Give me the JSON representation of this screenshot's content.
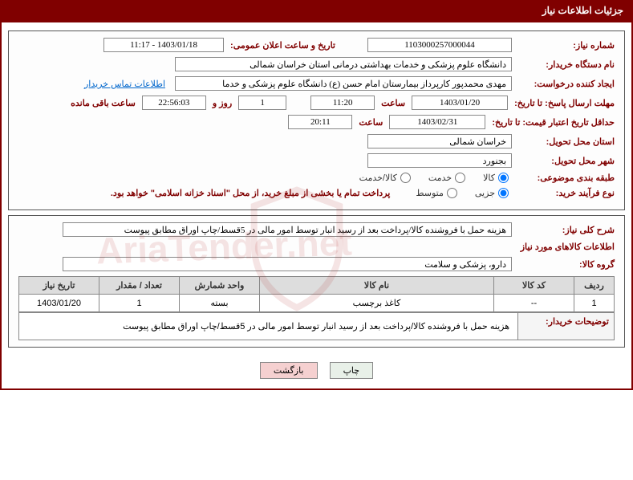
{
  "header_title": "جزئیات اطلاعات نیاز",
  "need_number_label": "شماره نیاز:",
  "need_number": "1103000257000044",
  "announce_label": "تاریخ و ساعت اعلان عمومی:",
  "announce_value": "1403/01/18 - 11:17",
  "buyer_org_label": "نام دستگاه خریدار:",
  "buyer_org": "دانشگاه علوم پزشکی و خدمات بهداشتی درمانی استان خراسان شمالی",
  "requester_label": "ایجاد کننده درخواست:",
  "requester": "مهدی محمدپور کارپرداز بیمارستان امام حسن (ع) دانشگاه علوم پزشکی و خدما",
  "contact_link": "اطلاعات تماس خریدار",
  "deadline_label": "مهلت ارسال پاسخ: تا تاریخ:",
  "deadline_date": "1403/01/20",
  "time_lbl": "ساعت",
  "deadline_time": "11:20",
  "remain_days": "1",
  "remain_days_lbl": "روز و",
  "remain_time": "22:56:03",
  "remain_suffix": "ساعت باقی مانده",
  "validity_label": "حداقل تاریخ اعتبار قیمت: تا تاریخ:",
  "validity_date": "1403/02/31",
  "validity_time": "20:11",
  "province_label": "استان محل تحویل:",
  "province": "خراسان شمالی",
  "city_label": "شهر محل تحویل:",
  "city": "بجنورد",
  "category_label": "طبقه بندی موضوعی:",
  "cat_goods": "کالا",
  "cat_service": "خدمت",
  "cat_goods_service": "کالا/خدمت",
  "process_label": "نوع فرآیند خرید:",
  "proc_partial": "جزیی",
  "proc_medium": "متوسط",
  "treasury_note": "پرداخت تمام یا بخشی از مبلغ خرید، از محل \"اسناد خزانه اسلامی\" خواهد بود.",
  "overall_desc_label": "شرح کلی نیاز:",
  "overall_desc": "هزینه حمل با فروشنده کالا/پرداخت بعد از رسید انبار توسط امور مالی در 5قسط/چاپ اوراق مطابق پیوست",
  "goods_info_title": "اطلاعات کالاهای مورد نیاز",
  "goods_group_label": "گروه کالا:",
  "goods_group": "دارو، پزشکی و سلامت",
  "table": {
    "headers": {
      "row": "ردیف",
      "code": "کد کالا",
      "name": "نام کالا",
      "unit": "واحد شمارش",
      "qty": "تعداد / مقدار",
      "date": "تاریخ نیاز"
    },
    "rows": [
      {
        "row": "1",
        "code": "--",
        "name": "کاغذ برچسب",
        "unit": "بسته",
        "qty": "1",
        "date": "1403/01/20"
      }
    ],
    "buyer_notes_label": "توضیحات خریدار:",
    "buyer_notes": "هزینه حمل با فروشنده کالا/پرداخت بعد از رسید انبار توسط امور مالی در 5قسط/چاپ اوراق مطابق پیوست"
  },
  "btn_print": "چاپ",
  "btn_back": "بازگشت"
}
